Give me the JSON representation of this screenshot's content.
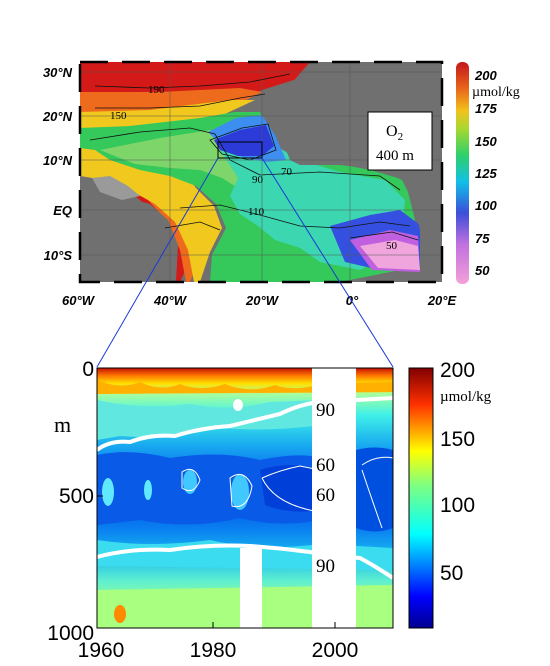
{
  "map_panel": {
    "lat_ticks": [
      "30°N",
      "20°N",
      "10°N",
      "EQ",
      "10°S"
    ],
    "lon_ticks": [
      "60°W",
      "40°W",
      "20°W",
      "0°",
      "20°E"
    ],
    "label_line1": "O",
    "label_sub": "2",
    "label_line2": "400 m",
    "contour_labels": [
      "190",
      "150",
      "90",
      "70",
      "110",
      "50"
    ]
  },
  "map_colorbar": {
    "ticks": [
      "200",
      "175",
      "150",
      "125",
      "100",
      "75",
      "50"
    ],
    "unit": "µmol/kg",
    "colors": [
      "#f4a0d8",
      "#3b4fd8",
      "#11c0e8",
      "#2ed06a",
      "#f2c21b",
      "#e8661a",
      "#c4161c"
    ]
  },
  "chart_data": {
    "type": "heatmap",
    "x": [
      1960,
      1980,
      2000
    ],
    "xlim": [
      1960,
      2010
    ],
    "ylim": [
      1000,
      0
    ],
    "ylabel": "m",
    "yticks": [
      "0",
      "500",
      "1000"
    ],
    "xticks": [
      "1960",
      "1980",
      "2000"
    ],
    "contour_labels": [
      "90",
      "60",
      "60",
      "90"
    ],
    "colorbar_ticks": [
      "200",
      "150",
      "100",
      "50"
    ],
    "colorbar_unit": "µmol/kg",
    "colorbar_range": [
      40,
      200
    ]
  }
}
